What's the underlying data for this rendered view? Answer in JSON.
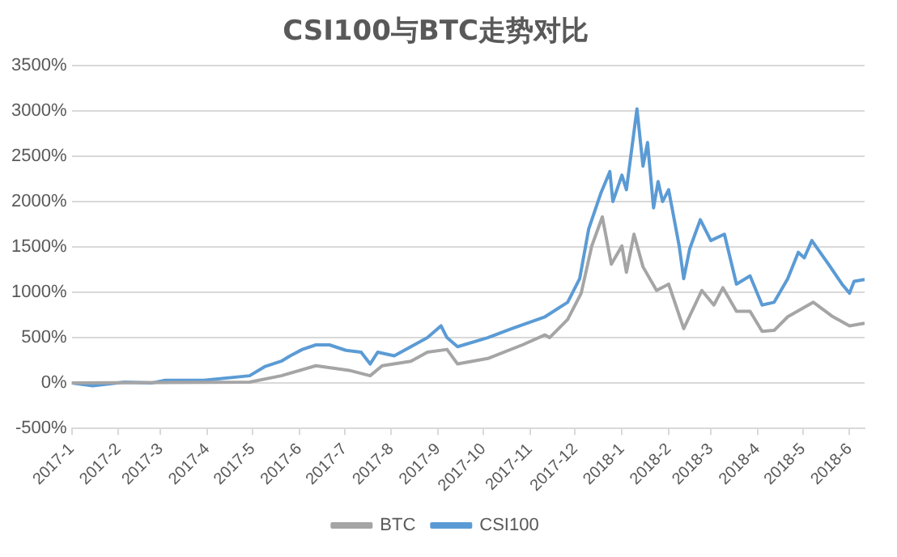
{
  "chart_data": {
    "type": "line",
    "title": "CSI100与BTC走势对比",
    "xlim": [
      "2017-01-01",
      "2018-06-11"
    ],
    "xticks": [
      {
        "value": "2017-01-01",
        "label": "2017-1"
      },
      {
        "value": "2017-02-01",
        "label": "2017-2"
      },
      {
        "value": "2017-03-01",
        "label": "2017-3"
      },
      {
        "value": "2017-04-01",
        "label": "2017-4"
      },
      {
        "value": "2017-05-01",
        "label": "2017-5"
      },
      {
        "value": "2017-06-01",
        "label": "2017-6"
      },
      {
        "value": "2017-07-01",
        "label": "2017-7"
      },
      {
        "value": "2017-08-01",
        "label": "2017-8"
      },
      {
        "value": "2017-09-01",
        "label": "2017-9"
      },
      {
        "value": "2017-10-01",
        "label": "2017-10"
      },
      {
        "value": "2017-11-01",
        "label": "2017-11"
      },
      {
        "value": "2017-12-01",
        "label": "2017-12"
      },
      {
        "value": "2018-01-01",
        "label": "2018-1"
      },
      {
        "value": "2018-02-01",
        "label": "2018-2"
      },
      {
        "value": "2018-03-01",
        "label": "2018-3"
      },
      {
        "value": "2018-04-01",
        "label": "2018-4"
      },
      {
        "value": "2018-05-01",
        "label": "2018-5"
      },
      {
        "value": "2018-06-01",
        "label": "2018-6"
      }
    ],
    "ylim": [
      -500,
      3500
    ],
    "yticks": [
      {
        "value": -500,
        "label": "-500%"
      },
      {
        "value": 0,
        "label": "0%"
      },
      {
        "value": 500,
        "label": "500%"
      },
      {
        "value": 1000,
        "label": "1000%"
      },
      {
        "value": 1500,
        "label": "1500%"
      },
      {
        "value": 2000,
        "label": "2000%"
      },
      {
        "value": 2500,
        "label": "2500%"
      },
      {
        "value": 3000,
        "label": "3000%"
      },
      {
        "value": 3500,
        "label": "3500%"
      }
    ],
    "grid": "y",
    "legend": "bottom",
    "marker": "none",
    "line_style": "solid",
    "series": [
      {
        "name": "BTC",
        "color": "#a5a5a5",
        "x": [
          "2017-01-01",
          "2017-04-29",
          "2017-05-20",
          "2017-06-12",
          "2017-07-04",
          "2017-07-18",
          "2017-07-26",
          "2017-08-14",
          "2017-08-25",
          "2017-09-07",
          "2017-09-14",
          "2017-10-04",
          "2017-10-27",
          "2017-11-11",
          "2017-11-14",
          "2017-11-26",
          "2017-12-05",
          "2017-12-12",
          "2017-12-19",
          "2017-12-25",
          "2018-01-01",
          "2018-01-04",
          "2018-01-09",
          "2018-01-15",
          "2018-01-24",
          "2018-02-01",
          "2018-02-11",
          "2018-02-23",
          "2018-03-03",
          "2018-03-09",
          "2018-03-18",
          "2018-03-27",
          "2018-04-04",
          "2018-04-12",
          "2018-04-21",
          "2018-05-08",
          "2018-05-21",
          "2018-06-01",
          "2018-06-11"
        ],
        "values": [
          0,
          10,
          80,
          190,
          140,
          80,
          190,
          240,
          340,
          370,
          210,
          270,
          420,
          530,
          500,
          700,
          990,
          1510,
          1830,
          1310,
          1510,
          1220,
          1640,
          1280,
          1020,
          1090,
          600,
          1020,
          860,
          1050,
          790,
          790,
          570,
          580,
          730,
          890,
          730,
          630,
          660
        ]
      },
      {
        "name": "CSI100",
        "color": "#5b9bd5",
        "x": [
          "2017-01-01",
          "2017-01-15",
          "2017-02-05",
          "2017-02-23",
          "2017-03-04",
          "2017-03-30",
          "2017-04-29",
          "2017-05-09",
          "2017-05-20",
          "2017-05-26",
          "2017-06-03",
          "2017-06-12",
          "2017-06-21",
          "2017-07-02",
          "2017-07-12",
          "2017-07-18",
          "2017-07-23",
          "2017-08-03",
          "2017-08-14",
          "2017-08-25",
          "2017-09-03",
          "2017-09-07",
          "2017-09-14",
          "2017-10-04",
          "2017-10-20",
          "2017-11-11",
          "2017-11-26",
          "2017-12-04",
          "2017-12-10",
          "2017-12-18",
          "2017-12-24",
          "2017-12-26",
          "2018-01-01",
          "2018-01-04",
          "2018-01-11",
          "2018-01-15",
          "2018-01-18",
          "2018-01-22",
          "2018-01-25",
          "2018-01-28",
          "2018-02-01",
          "2018-02-08",
          "2018-02-11",
          "2018-02-15",
          "2018-02-22",
          "2018-03-01",
          "2018-03-10",
          "2018-03-18",
          "2018-03-27",
          "2018-04-04",
          "2018-04-12",
          "2018-04-21",
          "2018-04-28",
          "2018-05-02",
          "2018-05-07",
          "2018-05-18",
          "2018-05-27",
          "2018-06-01",
          "2018-06-04",
          "2018-06-11"
        ],
        "values": [
          0,
          -30,
          10,
          0,
          30,
          30,
          80,
          180,
          240,
          300,
          370,
          420,
          420,
          360,
          340,
          210,
          340,
          300,
          400,
          500,
          630,
          500,
          400,
          500,
          600,
          730,
          890,
          1150,
          1700,
          2090,
          2330,
          2000,
          2290,
          2130,
          3020,
          2390,
          2650,
          1930,
          2220,
          2000,
          2130,
          1510,
          1150,
          1480,
          1800,
          1570,
          1640,
          1090,
          1180,
          860,
          890,
          1150,
          1440,
          1380,
          1570,
          1310,
          1090,
          990,
          1120,
          1140
        ]
      }
    ]
  }
}
